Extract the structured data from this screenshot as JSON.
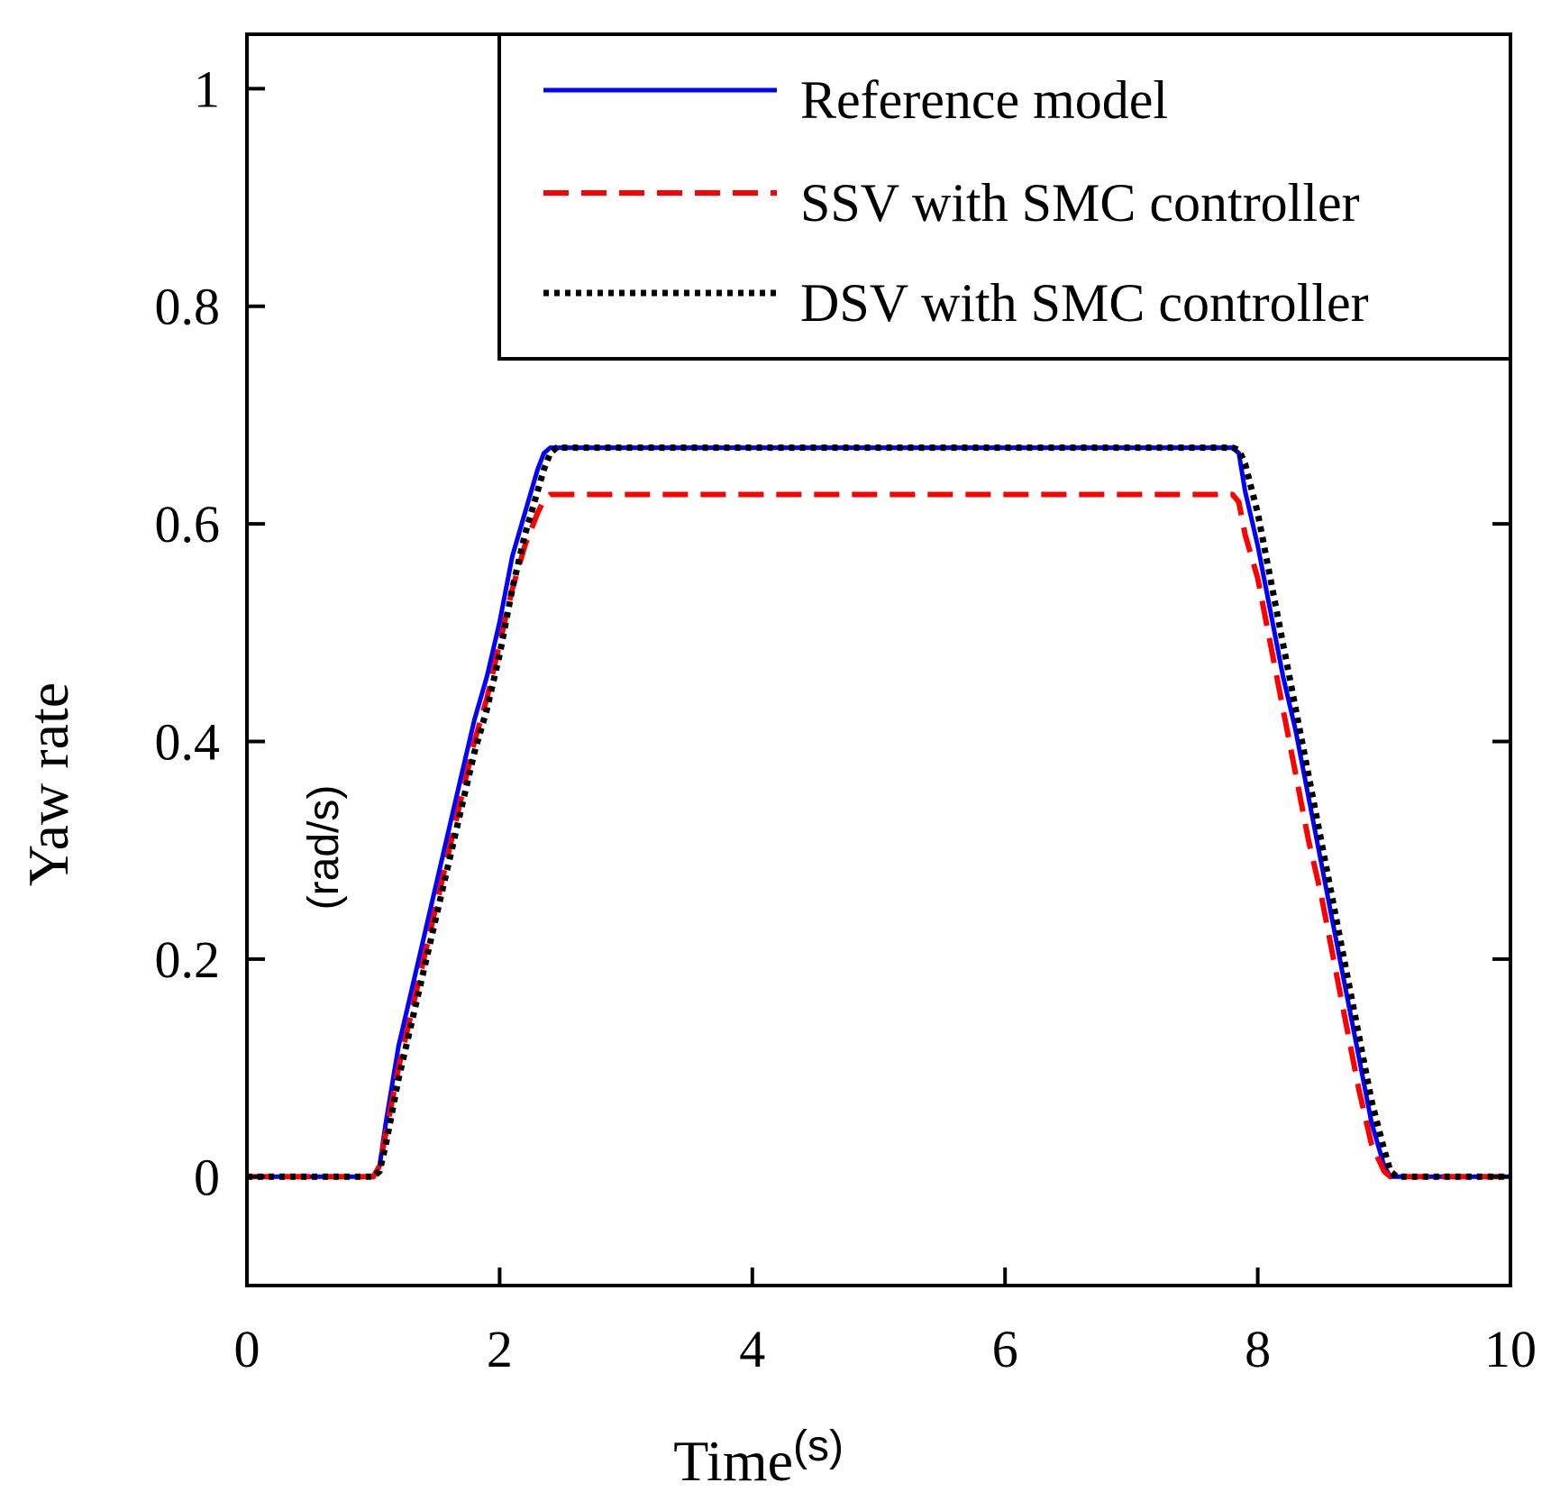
{
  "chart_data": {
    "type": "line",
    "xlabel": "Time",
    "xunit": "(s)",
    "ylabel": "Yaw rate",
    "yunit": "(rad/s)",
    "xlim": [
      0,
      10
    ],
    "ylim": [
      -0.1,
      1.05
    ],
    "xticks": [
      0,
      2,
      4,
      6,
      8,
      10
    ],
    "xtick_labels": [
      "0",
      "2",
      "4",
      "6",
      "8",
      "10"
    ],
    "yticks": [
      0,
      0.2,
      0.4,
      0.6,
      0.8,
      1
    ],
    "ytick_labels": [
      "0",
      "0.2",
      "0.4",
      "0.6",
      "0.8",
      "1"
    ],
    "grid": false,
    "legend_position": "top-right",
    "series": [
      {
        "name": "Reference model",
        "color": "#0000ff",
        "style": "solid",
        "x": [
          0,
          1.0,
          1.05,
          1.1,
          1.2,
          1.3,
          1.4,
          1.5,
          1.6,
          1.7,
          1.8,
          1.9,
          2.0,
          2.1,
          2.2,
          2.3,
          2.35,
          2.4,
          7.8,
          7.85,
          7.9,
          8.0,
          8.1,
          8.2,
          8.3,
          8.4,
          8.5,
          8.6,
          8.7,
          8.8,
          8.9,
          9.0,
          9.05,
          10
        ],
        "y": [
          0,
          0,
          0.01,
          0.05,
          0.12,
          0.17,
          0.22,
          0.27,
          0.32,
          0.37,
          0.42,
          0.46,
          0.51,
          0.57,
          0.61,
          0.65,
          0.665,
          0.67,
          0.67,
          0.665,
          0.63,
          0.58,
          0.52,
          0.46,
          0.41,
          0.35,
          0.29,
          0.23,
          0.17,
          0.11,
          0.05,
          0.01,
          0,
          0
        ]
      },
      {
        "name": "SSV with SMC controller",
        "color": "#ff0000",
        "style": "dashed",
        "x": [
          0,
          1.0,
          1.05,
          1.1,
          1.2,
          1.3,
          1.4,
          1.5,
          1.6,
          1.7,
          1.8,
          1.9,
          2.0,
          2.1,
          2.2,
          2.3,
          2.35,
          2.4,
          7.8,
          7.85,
          7.9,
          8.0,
          8.1,
          8.2,
          8.3,
          8.4,
          8.5,
          8.6,
          8.7,
          8.8,
          8.9,
          9.0,
          9.05,
          10
        ],
        "y": [
          0,
          0,
          0.01,
          0.04,
          0.1,
          0.15,
          0.2,
          0.25,
          0.3,
          0.35,
          0.4,
          0.44,
          0.49,
          0.54,
          0.58,
          0.61,
          0.622,
          0.627,
          0.627,
          0.62,
          0.59,
          0.55,
          0.49,
          0.43,
          0.37,
          0.31,
          0.26,
          0.2,
          0.14,
          0.08,
          0.03,
          0.005,
          0,
          0
        ]
      },
      {
        "name": "DSV with SMC controller",
        "color": "#000000",
        "style": "dotted",
        "x": [
          0,
          1.0,
          1.05,
          1.1,
          1.2,
          1.3,
          1.4,
          1.5,
          1.6,
          1.7,
          1.8,
          1.9,
          2.0,
          2.1,
          2.2,
          2.3,
          2.35,
          2.4,
          2.45,
          7.8,
          7.85,
          7.9,
          8.0,
          8.1,
          8.2,
          8.3,
          8.4,
          8.5,
          8.6,
          8.7,
          8.8,
          8.9,
          9.0,
          9.05,
          9.1,
          10
        ],
        "y": [
          0,
          0,
          0.005,
          0.03,
          0.09,
          0.14,
          0.19,
          0.24,
          0.29,
          0.34,
          0.39,
          0.43,
          0.48,
          0.54,
          0.59,
          0.63,
          0.65,
          0.665,
          0.67,
          0.67,
          0.668,
          0.655,
          0.61,
          0.55,
          0.49,
          0.43,
          0.37,
          0.31,
          0.25,
          0.19,
          0.13,
          0.07,
          0.025,
          0.005,
          0,
          0
        ]
      }
    ]
  }
}
